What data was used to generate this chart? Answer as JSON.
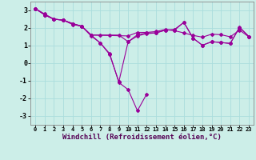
{
  "background_color": "#cceee8",
  "grid_color": "#aadddd",
  "line_color": "#990099",
  "xlabel": "Windchill (Refroidissement éolien,°C)",
  "xlabel_fontsize": 6.5,
  "xlim": [
    -0.5,
    23.5
  ],
  "ylim": [
    -3.5,
    3.5
  ],
  "yticks": [
    -3,
    -2,
    -1,
    0,
    1,
    2,
    3
  ],
  "xticks": [
    0,
    1,
    2,
    3,
    4,
    5,
    6,
    7,
    8,
    9,
    10,
    11,
    12,
    13,
    14,
    15,
    16,
    17,
    18,
    19,
    20,
    21,
    22,
    23
  ],
  "s1x": [
    0,
    1,
    2,
    3,
    4,
    5,
    6,
    7,
    8,
    9,
    10,
    11,
    12
  ],
  "s1y": [
    3.1,
    2.8,
    2.5,
    2.45,
    2.2,
    2.1,
    1.55,
    1.15,
    0.55,
    -1.1,
    -1.5,
    -2.7,
    -1.75
  ],
  "s2x": [
    0,
    1,
    2,
    3,
    4,
    5,
    6,
    10,
    11,
    12,
    13,
    14,
    15,
    16,
    17,
    18,
    19,
    20,
    21,
    22,
    23
  ],
  "s2y": [
    3.1,
    2.75,
    2.5,
    2.45,
    2.25,
    2.1,
    1.6,
    1.55,
    1.75,
    1.75,
    1.8,
    1.92,
    1.85,
    1.72,
    1.58,
    1.48,
    1.65,
    1.62,
    1.5,
    1.88,
    1.5
  ],
  "s3x": [
    0,
    1,
    2,
    3,
    4,
    5,
    6,
    7,
    8,
    9,
    10,
    11,
    12,
    13,
    14,
    15,
    16,
    17,
    18,
    19,
    20,
    21,
    22,
    23
  ],
  "s3y": [
    3.1,
    2.75,
    2.5,
    2.45,
    2.25,
    2.1,
    1.6,
    1.6,
    1.6,
    1.6,
    1.22,
    1.62,
    1.72,
    1.72,
    1.88,
    1.92,
    2.32,
    1.42,
    1.02,
    1.22,
    1.18,
    1.12,
    2.02,
    1.52
  ],
  "s4x": [
    0,
    1,
    2,
    3,
    4,
    5,
    6,
    7,
    8,
    9,
    10,
    11,
    12,
    13,
    14,
    15,
    16,
    17,
    18,
    19,
    20,
    21,
    22,
    23
  ],
  "s4y": [
    3.1,
    2.75,
    2.5,
    2.45,
    2.25,
    2.1,
    1.6,
    1.15,
    0.5,
    -1.05,
    1.22,
    1.55,
    1.68,
    1.72,
    1.88,
    1.88,
    2.32,
    1.42,
    1.02,
    1.22,
    1.18,
    1.12,
    2.05,
    1.52
  ]
}
